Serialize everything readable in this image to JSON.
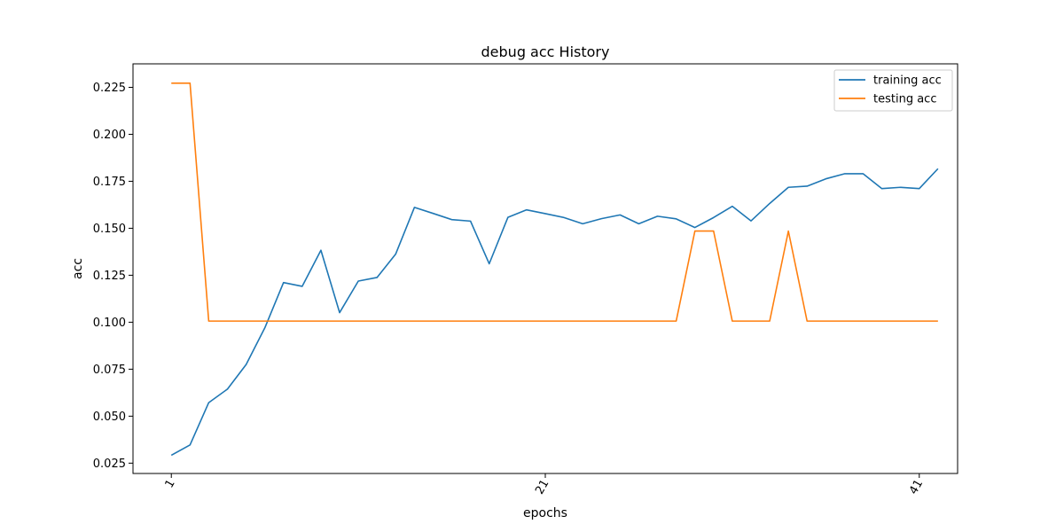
{
  "chart_data": {
    "type": "line",
    "title": "debug acc History",
    "xlabel": "epochs",
    "ylabel": "acc",
    "xlim": [
      -1.05,
      43.05
    ],
    "ylim": [
      0.0195,
      0.2375
    ],
    "x_ticks": [
      1,
      21,
      41
    ],
    "x_tick_labels": [
      "1",
      "21",
      "41"
    ],
    "y_ticks": [
      0.025,
      0.05,
      0.075,
      0.1,
      0.125,
      0.15,
      0.175,
      0.2,
      0.225
    ],
    "y_tick_labels": [
      "0.025",
      "0.050",
      "0.075",
      "0.100",
      "0.125",
      "0.150",
      "0.175",
      "0.200",
      "0.225"
    ],
    "grid": false,
    "legend_position": "top-right",
    "x": [
      1,
      2,
      3,
      4,
      5,
      6,
      7,
      8,
      9,
      10,
      11,
      12,
      13,
      14,
      15,
      16,
      17,
      18,
      19,
      20,
      21,
      22,
      23,
      24,
      25,
      26,
      27,
      28,
      29,
      30,
      31,
      32,
      33,
      34,
      35,
      36,
      37,
      38,
      39,
      40,
      41,
      42
    ],
    "series": [
      {
        "name": "training acc",
        "color": "#1f77b4",
        "values": [
          0.0292,
          0.0347,
          0.0572,
          0.0644,
          0.0775,
          0.097,
          0.1211,
          0.1191,
          0.1383,
          0.1051,
          0.1219,
          0.1238,
          0.1363,
          0.1611,
          0.1579,
          0.1546,
          0.1538,
          0.1311,
          0.1558,
          0.1598,
          0.1578,
          0.1557,
          0.1524,
          0.1551,
          0.1571,
          0.1524,
          0.1564,
          0.155,
          0.1504,
          0.1557,
          0.1617,
          0.1539,
          0.1632,
          0.1718,
          0.1724,
          0.1763,
          0.179,
          0.179,
          0.1711,
          0.1718,
          0.1711,
          0.1817
        ]
      },
      {
        "name": "testing acc",
        "color": "#ff7f0e",
        "values": [
          0.2272,
          0.2272,
          0.1006,
          0.1006,
          0.1006,
          0.1006,
          0.1006,
          0.1006,
          0.1006,
          0.1006,
          0.1006,
          0.1006,
          0.1006,
          0.1006,
          0.1006,
          0.1006,
          0.1006,
          0.1006,
          0.1006,
          0.1006,
          0.1006,
          0.1006,
          0.1006,
          0.1006,
          0.1006,
          0.1006,
          0.1006,
          0.1006,
          0.1485,
          0.1485,
          0.1006,
          0.1006,
          0.1006,
          0.1485,
          0.1006,
          0.1006,
          0.1006,
          0.1006,
          0.1006,
          0.1006,
          0.1006,
          0.1006
        ]
      }
    ]
  }
}
